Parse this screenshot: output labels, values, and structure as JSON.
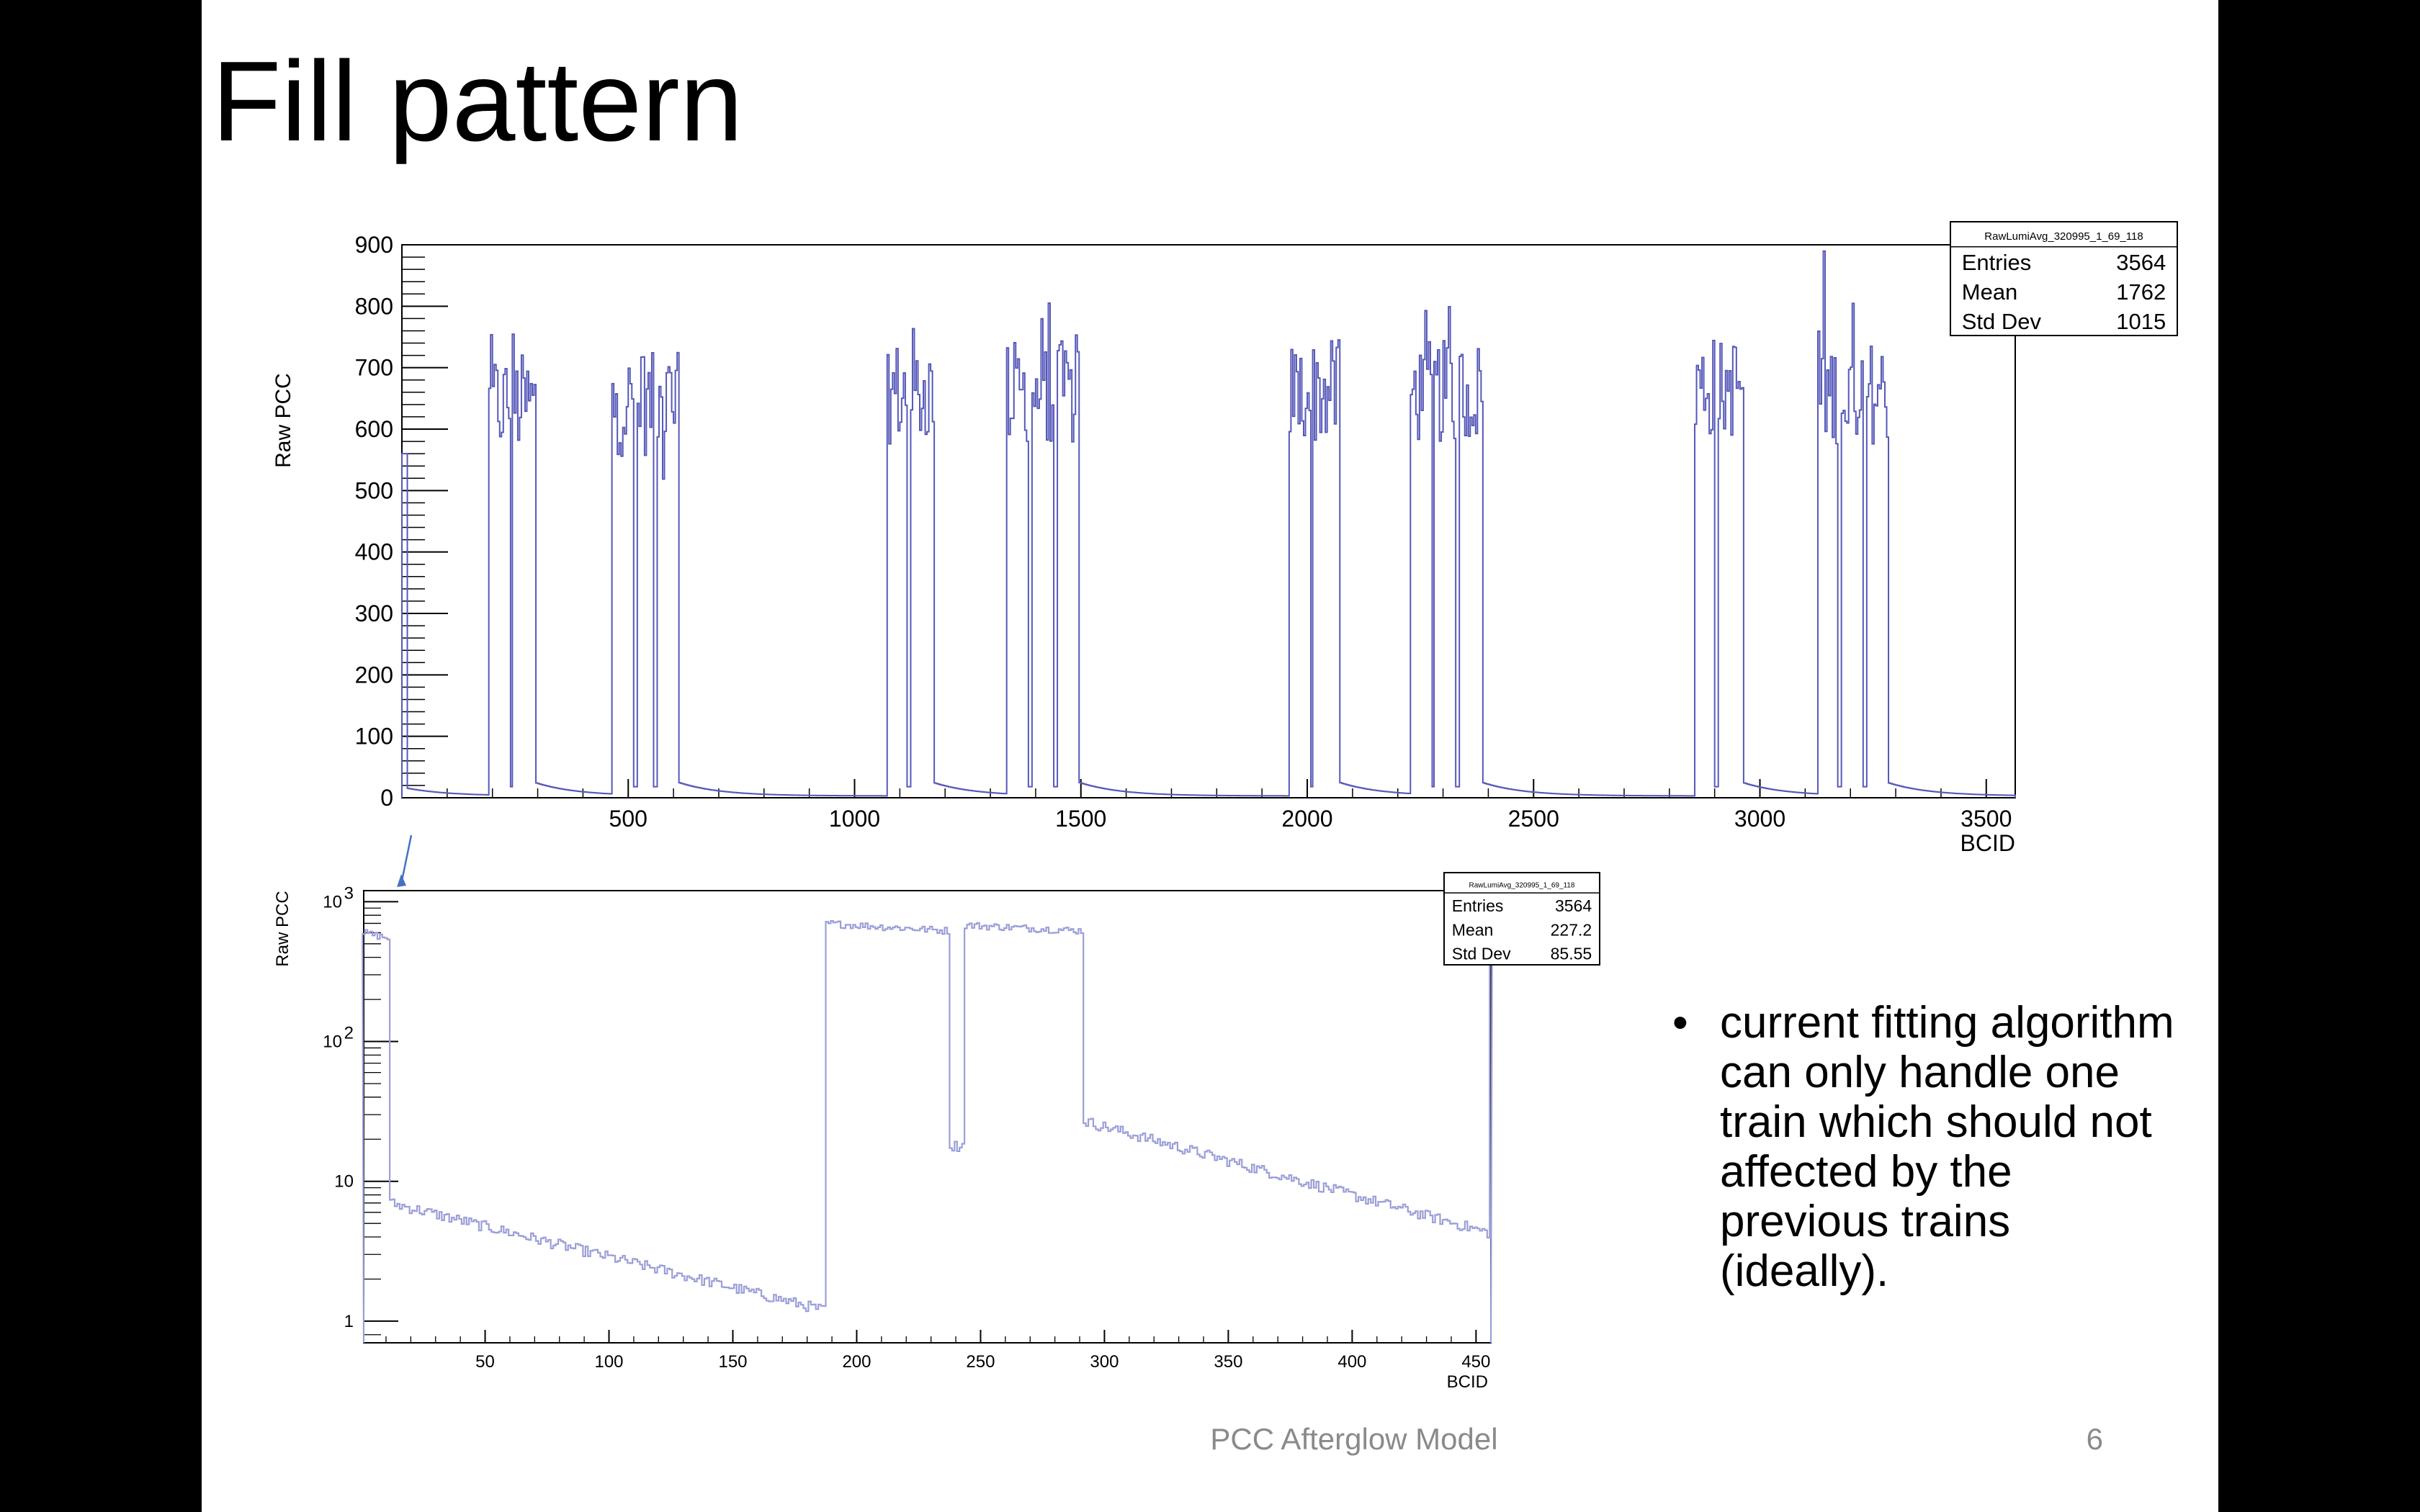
{
  "slide": {
    "title": "Fill pattern",
    "bullet_symbol": "•",
    "bullet_text": "current fitting algorithm can only handle one train which should not affected by the previous trains (ideally).",
    "footer": "PCC Afterglow Model",
    "page_number": "6"
  },
  "chart_data": [
    {
      "type": "line",
      "title": "",
      "xlabel": "BCID",
      "ylabel": "Raw PCC",
      "xlim": [
        0,
        3564
      ],
      "ylim": [
        0,
        900
      ],
      "x_ticks": [
        500,
        1000,
        1500,
        2000,
        2500,
        3000,
        3500
      ],
      "y_ticks": [
        0,
        100,
        200,
        300,
        400,
        500,
        600,
        700,
        800,
        900
      ],
      "color": "#5558b8",
      "stats_box": {
        "name": "RawLumiAvg_320995_1_69_118",
        "rows": [
          {
            "label": "Entries",
            "value": "3564"
          },
          {
            "label": "Mean",
            "value": "1762"
          },
          {
            "label": "Std Dev",
            "value": "1015"
          }
        ]
      },
      "trains": [
        {
          "start": 189,
          "end": 292,
          "mean": 640
        },
        {
          "start": 462,
          "end": 610,
          "mean": 640
        },
        {
          "start": 1072,
          "end": 1172,
          "mean": 660
        },
        {
          "start": 1335,
          "end": 1495,
          "mean": 660
        },
        {
          "start": 1960,
          "end": 2070,
          "mean": 660
        },
        {
          "start": 2228,
          "end": 2385,
          "mean": 660
        },
        {
          "start": 2855,
          "end": 2960,
          "mean": 670
        },
        {
          "start": 3125,
          "end": 3280,
          "mean": 660
        }
      ],
      "gaps": [
        {
          "start": 237,
          "end": 243,
          "value": 18
        },
        {
          "start": 510,
          "end": 516,
          "value": 18
        },
        {
          "start": 555,
          "end": 561,
          "value": 18
        },
        {
          "start": 1115,
          "end": 1121,
          "value": 18
        },
        {
          "start": 1382,
          "end": 1388,
          "value": 18
        },
        {
          "start": 1440,
          "end": 1446,
          "value": 18
        },
        {
          "start": 2005,
          "end": 2011,
          "value": 18
        },
        {
          "start": 2273,
          "end": 2279,
          "value": 18
        },
        {
          "start": 2328,
          "end": 2334,
          "value": 18
        },
        {
          "start": 2900,
          "end": 2906,
          "value": 18
        },
        {
          "start": 3172,
          "end": 3178,
          "value": 18
        },
        {
          "start": 3227,
          "end": 3233,
          "value": 18
        }
      ],
      "afterglow_start": 12,
      "grid": false
    },
    {
      "type": "line",
      "title": "",
      "xlabel": "BCID",
      "ylabel": "Raw PCC",
      "xlim": [
        1,
        456
      ],
      "ylim": [
        0.7,
        1200
      ],
      "log_y": true,
      "x_ticks": [
        50,
        100,
        150,
        200,
        250,
        300,
        350,
        400,
        450
      ],
      "y_ticks": [
        {
          "value": 1,
          "base": "1",
          "exp": ""
        },
        {
          "value": 10,
          "base": "10",
          "exp": ""
        },
        {
          "value": 100,
          "base": "10",
          "exp": "2"
        },
        {
          "value": 1000,
          "base": "10",
          "exp": "3"
        }
      ],
      "color": "#9b9fd8",
      "stats_box": {
        "name": "RawLumiAvg_320995_1_69_118",
        "rows": [
          {
            "label": "Entries",
            "value": "3564"
          },
          {
            "label": "Mean",
            "value": "227.2"
          },
          {
            "label": "Std Dev",
            "value": "85.55"
          }
        ]
      },
      "segments": [
        {
          "x_start": 1,
          "x_end": 11,
          "y_start": 600,
          "y_end": 550
        },
        {
          "x_start": 12,
          "x_end": 187,
          "y_start": 7,
          "y_end": 1.2
        },
        {
          "x_start": 188,
          "x_end": 237,
          "y_start": 700,
          "y_end": 620
        },
        {
          "x_start": 238,
          "x_end": 243,
          "y_start": 18,
          "y_end": 18
        },
        {
          "x_start": 244,
          "x_end": 291,
          "y_start": 680,
          "y_end": 620
        },
        {
          "x_start": 292,
          "x_end": 455,
          "y_start": 27,
          "y_end": 4.3
        },
        {
          "x_start": 456,
          "x_end": 456,
          "y_start": 600,
          "y_end": 600
        }
      ],
      "grid": false
    }
  ]
}
